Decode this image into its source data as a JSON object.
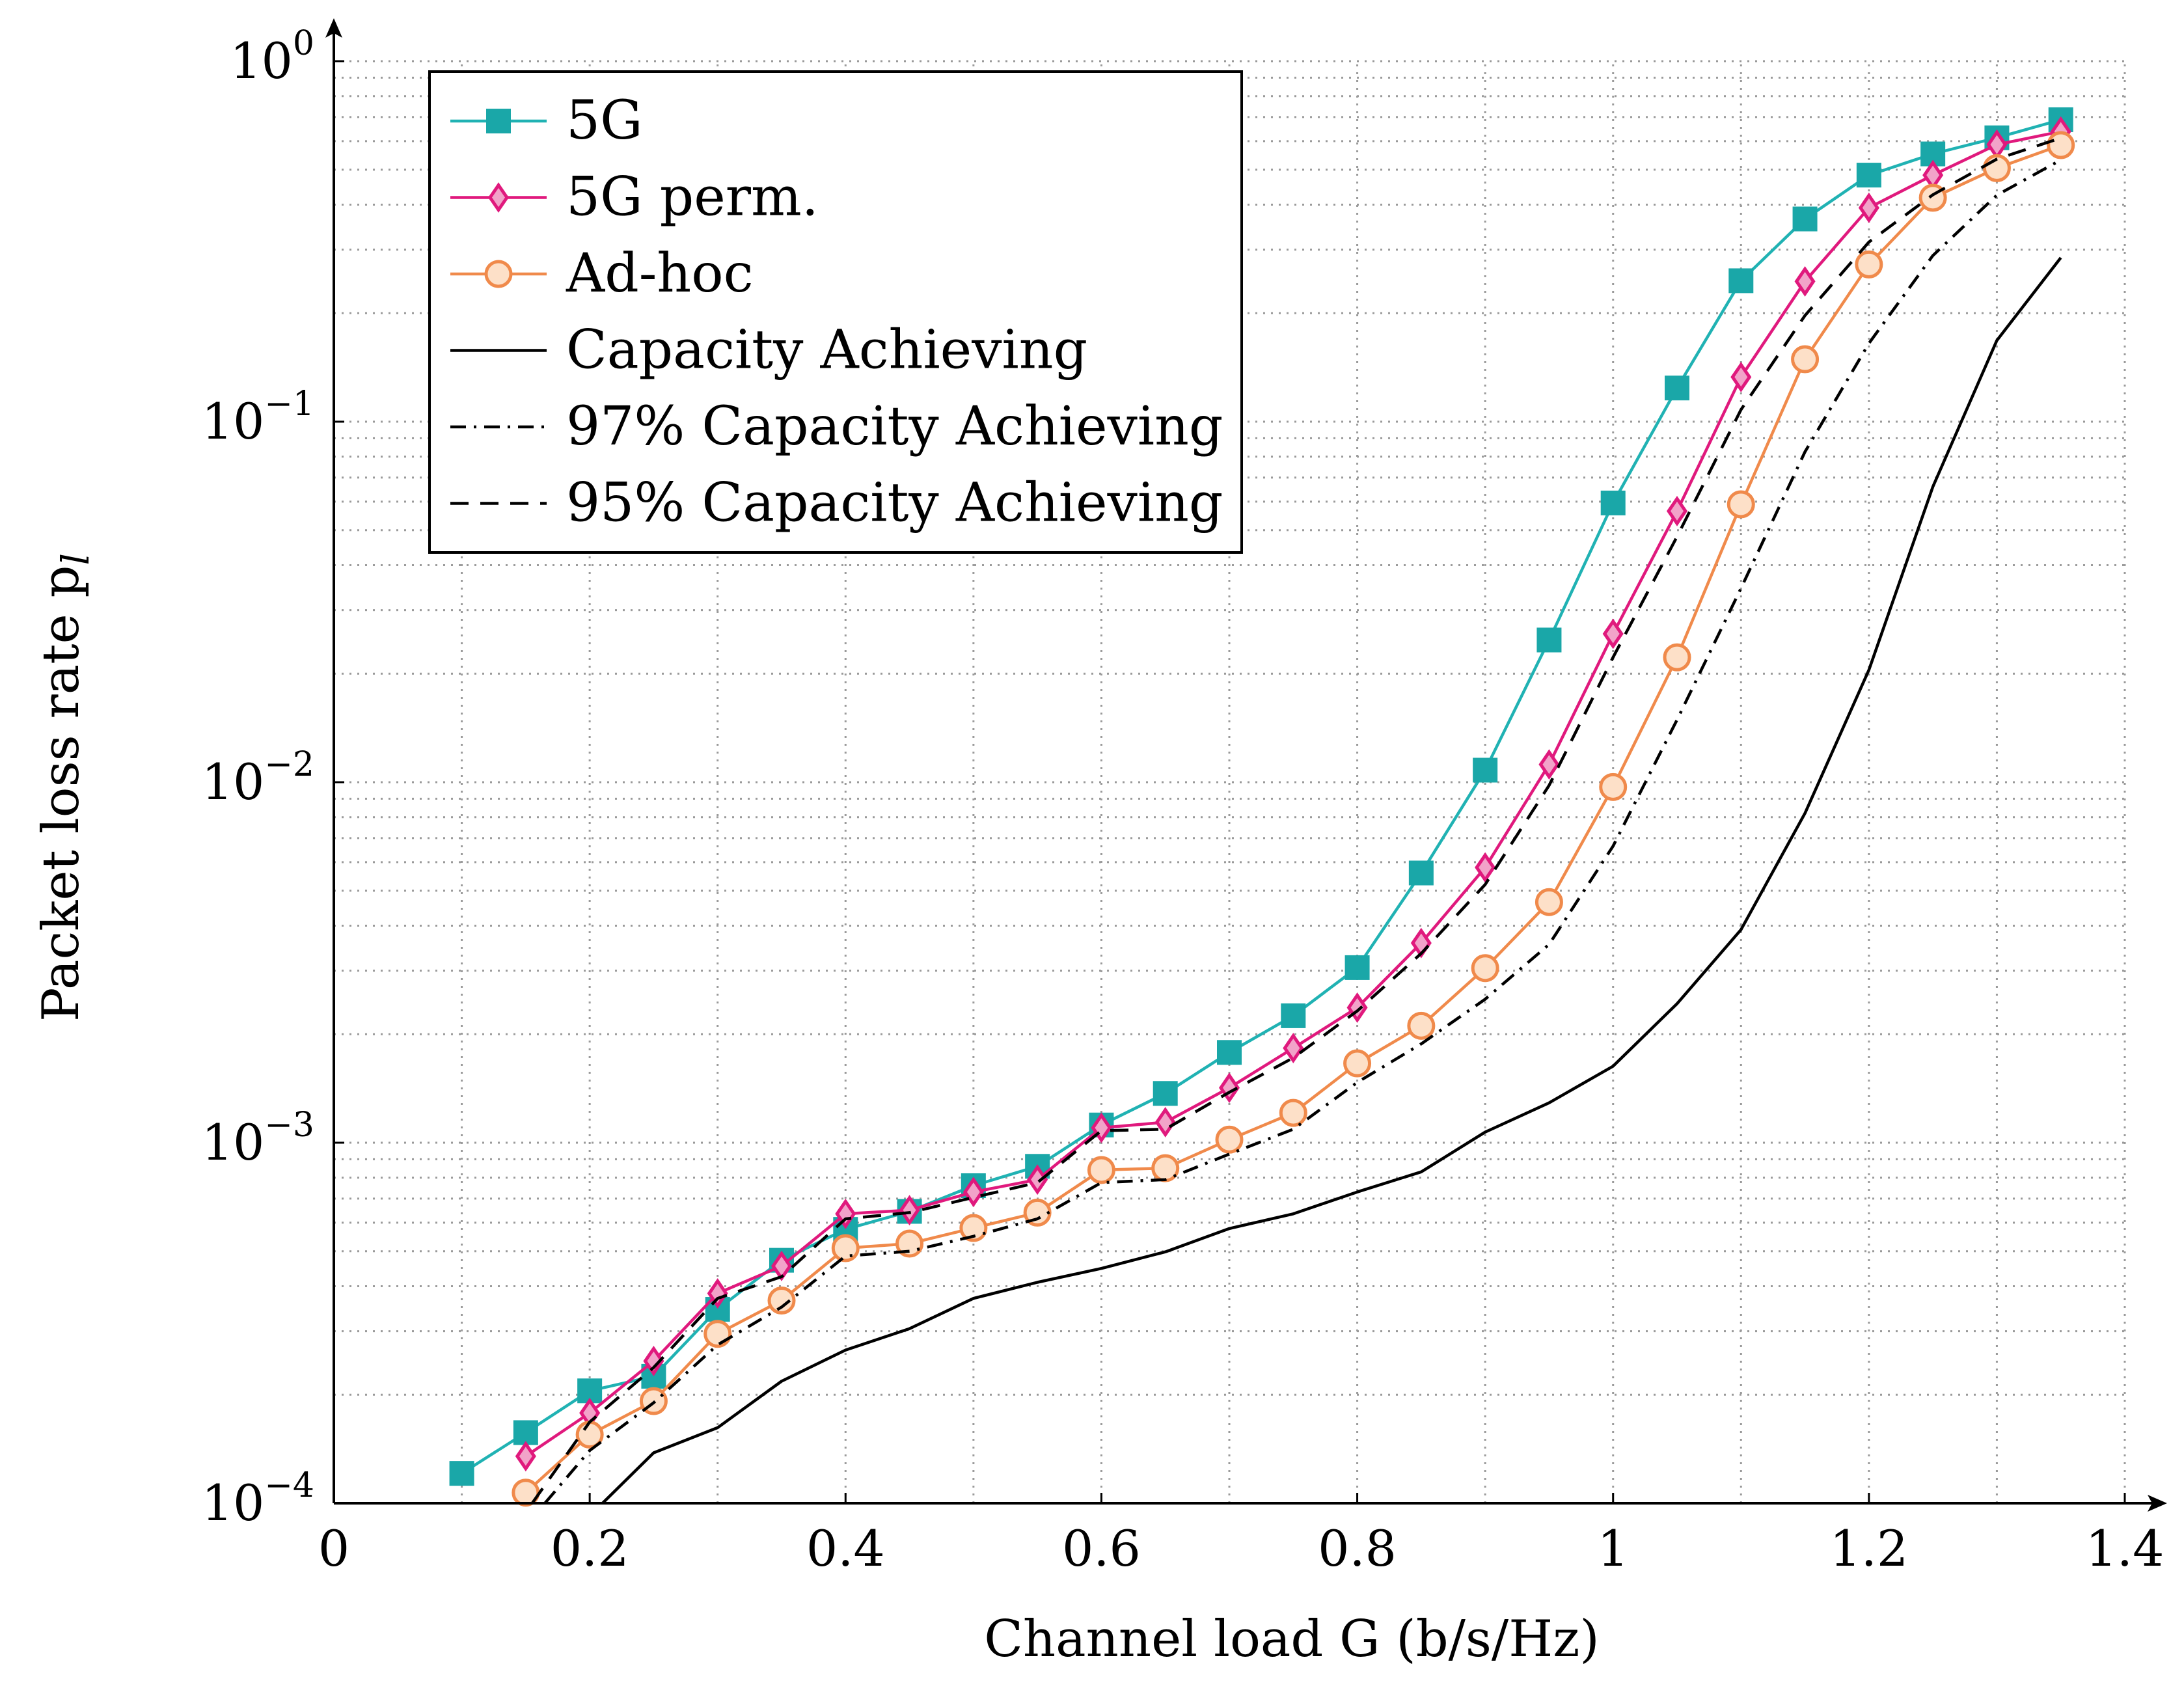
{
  "chart_data": {
    "type": "line",
    "title": "",
    "xlabel": "Channel load G (b/s/Hz)",
    "ylabel": "Packet loss rate p",
    "ylabel_subscript": "l",
    "xscale": "linear",
    "yscale": "log",
    "xlim": [
      0,
      1.4
    ],
    "ylim": [
      0.0001,
      1
    ],
    "grid": "on (dotted, major and minor)",
    "legend_position": "top-left",
    "x_ticks": [
      {
        "value": 0,
        "label": "0"
      },
      {
        "value": 0.2,
        "label": "0.2"
      },
      {
        "value": 0.4,
        "label": "0.4"
      },
      {
        "value": 0.6,
        "label": "0.6"
      },
      {
        "value": 0.8,
        "label": "0.8"
      },
      {
        "value": 1.0,
        "label": "1"
      },
      {
        "value": 1.2,
        "label": "1.2"
      },
      {
        "value": 1.4,
        "label": "1.4"
      }
    ],
    "y_ticks": [
      {
        "value": 0.0001,
        "base": "10",
        "exp": "−4"
      },
      {
        "value": 0.001,
        "base": "10",
        "exp": "−3"
      },
      {
        "value": 0.01,
        "base": "10",
        "exp": "−2"
      },
      {
        "value": 0.1,
        "base": "10",
        "exp": "−1"
      },
      {
        "value": 1,
        "base": "10",
        "exp": "0"
      }
    ],
    "series": [
      {
        "name": "5G",
        "color": "#20b2b3",
        "fill": "#1aa7a8",
        "marker": "square",
        "dash": "solid",
        "x": [
          0.1,
          0.15,
          0.2,
          0.25,
          0.3,
          0.35,
          0.4,
          0.45,
          0.5,
          0.55,
          0.6,
          0.65,
          0.7,
          0.75,
          0.8,
          0.85,
          0.9,
          0.95,
          1.0,
          1.05,
          1.1,
          1.15,
          1.2,
          1.25,
          1.3,
          1.35
        ],
        "y": [
          0.000121,
          0.000157,
          0.000205,
          0.000225,
          0.000345,
          0.000472,
          0.000575,
          0.000645,
          0.00076,
          0.00086,
          0.00112,
          0.00137,
          0.00178,
          0.00225,
          0.00306,
          0.0056,
          0.0108,
          0.0248,
          0.0595,
          0.124,
          0.246,
          0.365,
          0.483,
          0.553,
          0.613,
          0.688
        ]
      },
      {
        "name": "5G perm.",
        "color": "#e0197d",
        "fill": "#f2a3c9",
        "marker": "diamond",
        "dash": "solid",
        "x": [
          0.15,
          0.2,
          0.25,
          0.3,
          0.35,
          0.4,
          0.45,
          0.5,
          0.55,
          0.6,
          0.65,
          0.7,
          0.75,
          0.8,
          0.85,
          0.9,
          0.95,
          1.0,
          1.05,
          1.1,
          1.15,
          1.2,
          1.25,
          1.3,
          1.35
        ],
        "y": [
          0.000135,
          0.000178,
          0.000248,
          0.000382,
          0.000455,
          0.000635,
          0.00065,
          0.00073,
          0.00079,
          0.0011,
          0.00114,
          0.00142,
          0.00183,
          0.00237,
          0.00358,
          0.0058,
          0.0112,
          0.0258,
          0.0565,
          0.133,
          0.245,
          0.392,
          0.483,
          0.587,
          0.638
        ]
      },
      {
        "name": "Ad-hoc",
        "color": "#f08a4b",
        "fill": "#fde0c8",
        "marker": "circle",
        "dash": "solid",
        "x": [
          0.15,
          0.2,
          0.25,
          0.3,
          0.35,
          0.4,
          0.45,
          0.5,
          0.55,
          0.6,
          0.65,
          0.7,
          0.75,
          0.8,
          0.85,
          0.9,
          0.95,
          1.0,
          1.05,
          1.1,
          1.15,
          1.2,
          1.25,
          1.3,
          1.35
        ],
        "y": [
          0.000107,
          0.000155,
          0.000192,
          0.000295,
          0.000365,
          0.00051,
          0.000525,
          0.00058,
          0.00064,
          0.00084,
          0.00085,
          0.00102,
          0.00121,
          0.00166,
          0.00211,
          0.00305,
          0.00465,
          0.0097,
          0.0222,
          0.059,
          0.149,
          0.273,
          0.418,
          0.505,
          0.585
        ]
      },
      {
        "name": "Capacity Achieving",
        "color": "#000000",
        "marker": "none",
        "dash": "solid",
        "x": [
          0.21,
          0.25,
          0.3,
          0.35,
          0.4,
          0.45,
          0.5,
          0.55,
          0.6,
          0.65,
          0.7,
          0.75,
          0.8,
          0.85,
          0.9,
          0.95,
          1.0,
          1.05,
          1.1,
          1.15,
          1.2,
          1.25,
          1.3,
          1.35
        ],
        "y": [
          0.0001,
          0.000138,
          0.000162,
          0.000218,
          0.000266,
          0.000305,
          0.00037,
          0.00041,
          0.000448,
          0.000498,
          0.000578,
          0.000635,
          0.00073,
          0.00083,
          0.00107,
          0.00129,
          0.00163,
          0.00243,
          0.0039,
          0.0082,
          0.0205,
          0.066,
          0.168,
          0.285
        ]
      },
      {
        "name": "97% Capacity Achieving",
        "color": "#000000",
        "marker": "none",
        "dash": "dashdot",
        "x": [
          0.165,
          0.2,
          0.25,
          0.3,
          0.35,
          0.4,
          0.45,
          0.5,
          0.55,
          0.6,
          0.65,
          0.7,
          0.75,
          0.8,
          0.85,
          0.9,
          0.95,
          1.0,
          1.05,
          1.1,
          1.15,
          1.2,
          1.25,
          1.3,
          1.35
        ],
        "y": [
          0.0001,
          0.00014,
          0.00019,
          0.000275,
          0.00035,
          0.000485,
          0.0005,
          0.00055,
          0.000615,
          0.000775,
          0.00079,
          0.00093,
          0.00109,
          0.00147,
          0.00188,
          0.0025,
          0.00355,
          0.00665,
          0.0149,
          0.0345,
          0.0825,
          0.165,
          0.289,
          0.425,
          0.532
        ]
      },
      {
        "name": "95% Capacity Achieving",
        "color": "#000000",
        "marker": "none",
        "dash": "dashed",
        "x": [
          0.155,
          0.2,
          0.25,
          0.3,
          0.35,
          0.4,
          0.45,
          0.5,
          0.55,
          0.6,
          0.65,
          0.7,
          0.75,
          0.8,
          0.85,
          0.9,
          0.95,
          1.0,
          1.05,
          1.1,
          1.15,
          1.2,
          1.25,
          1.3,
          1.35
        ],
        "y": [
          0.0001,
          0.000168,
          0.000238,
          0.00037,
          0.000425,
          0.000615,
          0.00064,
          0.000705,
          0.000775,
          0.00108,
          0.00109,
          0.00138,
          0.00172,
          0.00232,
          0.00335,
          0.0052,
          0.0098,
          0.0222,
          0.048,
          0.108,
          0.197,
          0.315,
          0.426,
          0.535,
          0.612
        ]
      }
    ]
  }
}
